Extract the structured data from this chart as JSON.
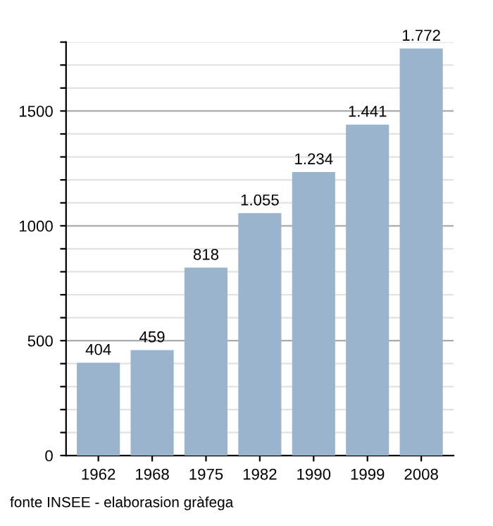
{
  "chart_data": {
    "type": "bar",
    "categories": [
      "1962",
      "1968",
      "1975",
      "1982",
      "1990",
      "1999",
      "2008"
    ],
    "values": [
      404,
      459,
      818,
      1055,
      1234,
      1441,
      1772
    ],
    "value_labels": [
      "404",
      "459",
      "818",
      "1.055",
      "1.234",
      "1.441",
      "1.772"
    ],
    "color": "#9bb4cd",
    "ylim": [
      0,
      1800
    ],
    "yticks": [
      0,
      {
        "value": 100,
        "label": null
      },
      {
        "value": 200,
        "label": null
      },
      {
        "value": 300,
        "label": null
      },
      {
        "value": 400,
        "label": null
      },
      500,
      {
        "value": 600,
        "label": null
      },
      {
        "value": 700,
        "label": null
      },
      {
        "value": 800,
        "label": null
      },
      {
        "value": 900,
        "label": null
      },
      1000,
      {
        "value": 1100,
        "label": null
      },
      {
        "value": 1200,
        "label": null
      },
      {
        "value": 1300,
        "label": null
      },
      {
        "value": 1400,
        "label": null
      },
      1500,
      {
        "value": 1600,
        "label": null
      },
      {
        "value": 1700,
        "label": null
      },
      {
        "value": 1800,
        "label": null
      }
    ],
    "grid": "y",
    "annotations": [
      "fonte INSEE - elaborasion gràfega"
    ]
  }
}
